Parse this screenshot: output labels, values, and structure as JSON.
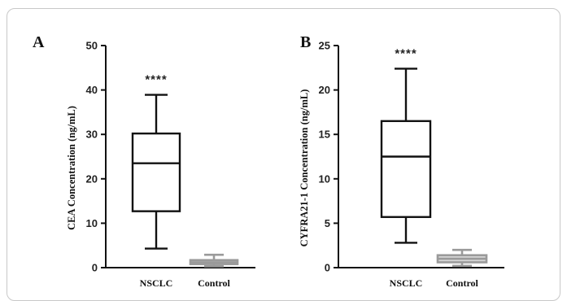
{
  "chart_data": [
    {
      "type": "box",
      "panel": "A",
      "ylabel": "CEA Concentration (ng/mL)",
      "ylim": [
        0,
        50
      ],
      "yticks": [
        0,
        10,
        20,
        30,
        40,
        50
      ],
      "categories": [
        "NSCLC",
        "Control"
      ],
      "boxes": [
        {
          "category": "NSCLC",
          "min": 4.3,
          "q1": 12.7,
          "median": 23.5,
          "q3": 30.2,
          "max": 38.9,
          "color": "#111111",
          "annotation": "****"
        },
        {
          "category": "Control",
          "min": 0.3,
          "q1": 0.8,
          "median": 1.2,
          "q3": 1.7,
          "max": 2.9,
          "color": "#9a9a9a"
        }
      ]
    },
    {
      "type": "box",
      "panel": "B",
      "ylabel": "CYFRA21-1 Concentration (ng/mL)",
      "ylim": [
        0,
        25
      ],
      "yticks": [
        0,
        5,
        10,
        15,
        20,
        25
      ],
      "categories": [
        "NSCLC",
        "Control"
      ],
      "boxes": [
        {
          "category": "NSCLC",
          "min": 2.8,
          "q1": 5.7,
          "median": 12.5,
          "q3": 16.5,
          "max": 22.4,
          "color": "#111111",
          "annotation": "****"
        },
        {
          "category": "Control",
          "min": 0.2,
          "q1": 0.6,
          "median": 1.0,
          "q3": 1.4,
          "max": 2.0,
          "color": "#9a9a9a"
        }
      ]
    }
  ]
}
